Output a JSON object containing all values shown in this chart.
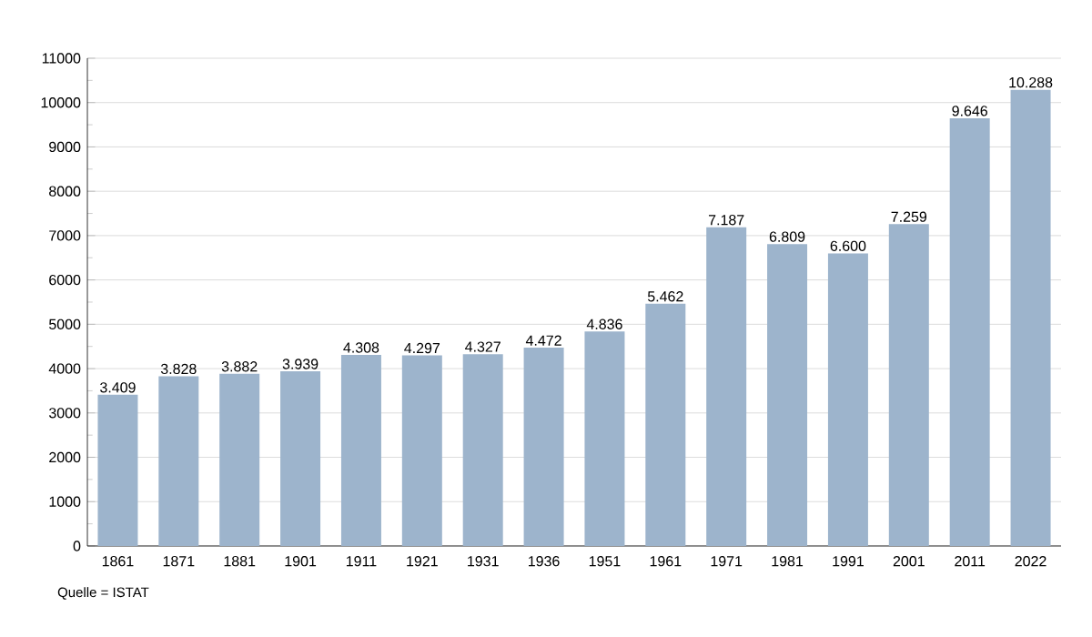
{
  "chart_data": {
    "type": "bar",
    "categories": [
      "1861",
      "1871",
      "1881",
      "1901",
      "1911",
      "1921",
      "1931",
      "1936",
      "1951",
      "1961",
      "1971",
      "1981",
      "1991",
      "2001",
      "2011",
      "2022"
    ],
    "values": [
      3409,
      3828,
      3882,
      3939,
      4308,
      4297,
      4327,
      4472,
      4836,
      5462,
      7187,
      6809,
      6600,
      7259,
      9646,
      10288
    ],
    "value_labels": [
      "3.409",
      "3.828",
      "3.882",
      "3.939",
      "4.308",
      "4.297",
      "4.327",
      "4.472",
      "4.836",
      "5.462",
      "7.187",
      "6.809",
      "6.600",
      "7.259",
      "9.646",
      "10.288"
    ],
    "color": "#9db4cc",
    "ylim": [
      0,
      11000
    ],
    "yticks": [
      0,
      1000,
      2000,
      3000,
      4000,
      5000,
      6000,
      7000,
      8000,
      9000,
      10000,
      11000
    ],
    "grid": "y",
    "annotations": [
      "Quelle = ISTAT"
    ]
  }
}
